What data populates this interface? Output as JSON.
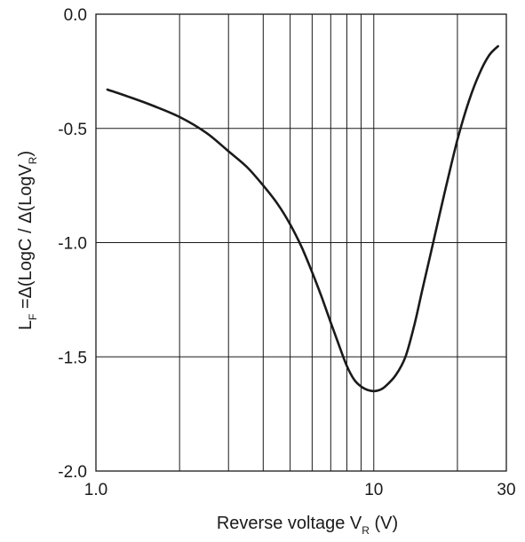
{
  "chart_data": {
    "type": "line",
    "title": "",
    "xlabel": {
      "prefix": "Reverse voltage V",
      "sub": "R",
      "suffix": " (V)"
    },
    "ylabel": {
      "p1": "L",
      "sub1": "F",
      "p2": " =Δ(LogC / Δ(LogV",
      "sub2": "R",
      "p3": ")"
    },
    "x_scale": "log",
    "xlim": [
      1.0,
      30
    ],
    "ylim": [
      -2.0,
      0.0
    ],
    "x_ticks": [
      {
        "value": 1.0,
        "label": "1.0"
      },
      {
        "value": 10,
        "label": "10"
      },
      {
        "value": 30,
        "label": "30"
      }
    ],
    "y_ticks": [
      {
        "value": 0.0,
        "label": "0.0"
      },
      {
        "value": -0.5,
        "label": "-0.5"
      },
      {
        "value": -1.0,
        "label": "-1.0"
      },
      {
        "value": -1.5,
        "label": "-1.5"
      },
      {
        "value": -2.0,
        "label": "-2.0"
      }
    ],
    "x_gridlines": [
      2,
      3,
      4,
      5,
      6,
      7,
      8,
      9,
      10,
      20
    ],
    "y_gridlines": [
      -0.5,
      -1.0,
      -1.5
    ],
    "grid": true,
    "line_color": "#1a1a1a",
    "series": [
      {
        "x": [
          1.1,
          1.3,
          1.6,
          2.0,
          2.5,
          3.0,
          3.5,
          4.0,
          4.5,
          5.0,
          5.5,
          6.0,
          6.5,
          7.0,
          7.5,
          8.0,
          8.5,
          9.0,
          9.5,
          10.0,
          10.5,
          11.0,
          12.0,
          13.0,
          14.0,
          15.0,
          16.5,
          18.0,
          20.0,
          22.0,
          24.0,
          26.0,
          28.0
        ],
        "y": [
          -0.33,
          -0.36,
          -0.4,
          -0.45,
          -0.52,
          -0.6,
          -0.67,
          -0.75,
          -0.83,
          -0.92,
          -1.02,
          -1.13,
          -1.24,
          -1.35,
          -1.45,
          -1.54,
          -1.6,
          -1.63,
          -1.645,
          -1.65,
          -1.645,
          -1.63,
          -1.58,
          -1.5,
          -1.36,
          -1.2,
          -0.98,
          -0.78,
          -0.55,
          -0.38,
          -0.26,
          -0.18,
          -0.14
        ]
      }
    ]
  }
}
